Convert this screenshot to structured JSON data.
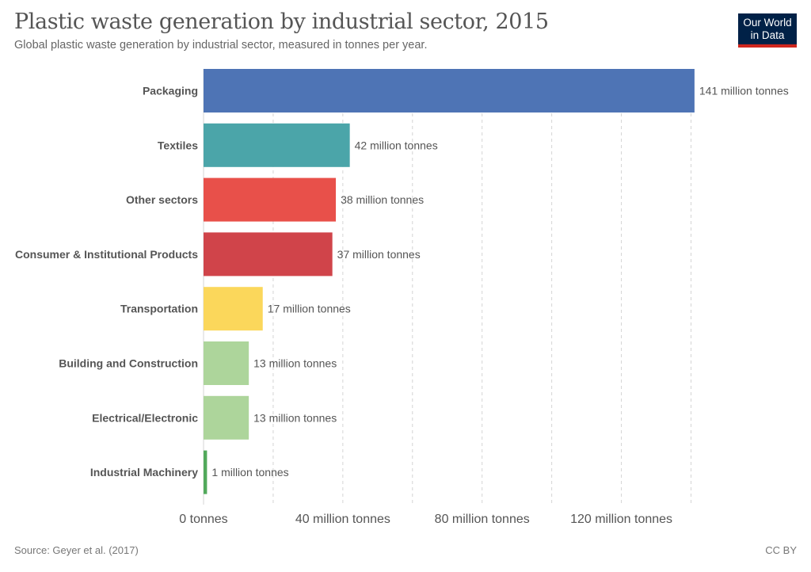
{
  "header": {
    "title": "Plastic waste generation by industrial sector, 2015",
    "subtitle": "Global plastic waste generation by industrial sector, measured in tonnes per year."
  },
  "logo": {
    "line1": "Our World",
    "line2": "in Data"
  },
  "footer": {
    "source": "Source: Geyer et al. (2017)",
    "license": "CC BY"
  },
  "chart_data": {
    "type": "bar",
    "orientation": "horizontal",
    "title": "Plastic waste generation by industrial sector, 2015",
    "subtitle": "Global plastic waste generation by industrial sector, measured in tonnes per year.",
    "categories": [
      "Packaging",
      "Textiles",
      "Other sectors",
      "Consumer & Institutional Products",
      "Transportation",
      "Building and Construction",
      "Electrical/Electronic",
      "Industrial Machinery"
    ],
    "values": [
      141,
      42,
      38,
      37,
      17,
      13,
      13,
      1
    ],
    "value_labels": [
      "141 million tonnes",
      "42 million tonnes",
      "38 million tonnes",
      "37 million tonnes",
      "17 million tonnes",
      "13 million tonnes",
      "13 million tonnes",
      "1 million tonnes"
    ],
    "colors": [
      "#4e74b5",
      "#4ba5a9",
      "#e8504a",
      "#d0444a",
      "#fbd75b",
      "#add59b",
      "#add59b",
      "#52a95b"
    ],
    "unit": "million tonnes",
    "xlim": [
      0,
      140
    ],
    "ticks": [
      0,
      20,
      40,
      60,
      80,
      100,
      120,
      140
    ],
    "tick_labels": [
      {
        "value": 0,
        "label": "0 tonnes"
      },
      {
        "value": 40,
        "label": "40 million tonnes"
      },
      {
        "value": 80,
        "label": "80 million tonnes"
      },
      {
        "value": 120,
        "label": "120 million tonnes"
      }
    ],
    "grid": true,
    "legend": "none"
  }
}
